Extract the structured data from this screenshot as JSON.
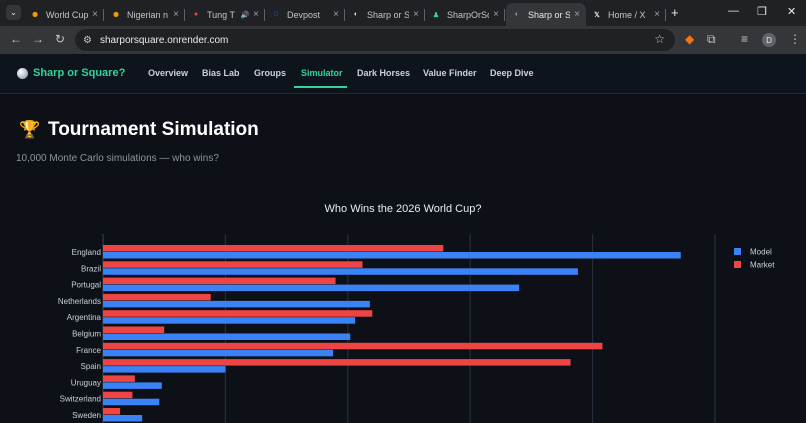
{
  "browser": {
    "tabs": [
      {
        "title": "World Cup",
        "favicon": "flower-icon",
        "color": "#f59e0b",
        "audio": false
      },
      {
        "title": "Nigerian n",
        "favicon": "flower-icon",
        "color": "#f59e0b",
        "audio": false
      },
      {
        "title": "Tung T",
        "favicon": "record-icon",
        "color": "#ef4444",
        "audio": true
      },
      {
        "title": "Devpost",
        "favicon": "d-icon",
        "color": "#1e3a5f",
        "audio": false
      },
      {
        "title": "Sharp or S",
        "favicon": "globe-icon",
        "color": "#e5e7eb",
        "audio": false
      },
      {
        "title": "SharpOrSq",
        "favicon": "figure-icon",
        "color": "#34d399",
        "audio": false
      },
      {
        "title": "Sharp or S",
        "favicon": "globe-icon",
        "color": "#9ca3af",
        "audio": false,
        "active": true
      },
      {
        "title": "Home / X",
        "favicon": "x-icon",
        "color": "#e5e7eb",
        "audio": false
      }
    ],
    "url": "sharporsquare.onrender.com",
    "profile_initial": "D"
  },
  "app": {
    "brand": "Sharp or Square?",
    "nav": [
      "Overview",
      "Bias Lab",
      "Groups",
      "Simulator",
      "Dark Horses",
      "Value Finder",
      "Deep Dive"
    ],
    "active_nav": "Simulator",
    "accent": "#34d399"
  },
  "page": {
    "title": "Tournament Simulation",
    "subtitle": "10,000 Monte Carlo simulations — who wins?"
  },
  "chart_data": {
    "type": "bar",
    "orientation": "horizontal",
    "title": "Who Wins the 2026 World Cup?",
    "categories": [
      "England",
      "Brazil",
      "Portugal",
      "Netherlands",
      "Argentina",
      "Belgium",
      "France",
      "Spain",
      "Uruguay",
      "Switzerland",
      "Sweden"
    ],
    "series": [
      {
        "name": "Model",
        "color": "#3b82f6",
        "values": [
          23.6,
          19.4,
          17.0,
          10.9,
          10.3,
          10.1,
          9.4,
          5.0,
          2.4,
          2.3,
          1.6
        ]
      },
      {
        "name": "Market",
        "color": "#ef4444",
        "values": [
          13.9,
          10.6,
          9.5,
          4.4,
          11.0,
          2.5,
          20.4,
          19.1,
          1.3,
          1.2,
          0.7
        ]
      }
    ],
    "grid": true,
    "legend": "top-right"
  }
}
